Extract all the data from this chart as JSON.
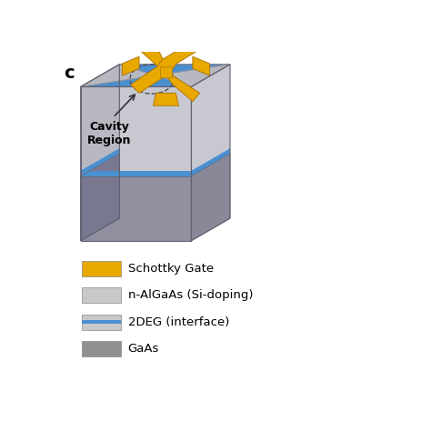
{
  "panel_label": "c",
  "panel_label_fontsize": 14,
  "panel_label_fontweight": "bold",
  "background_color": "#ffffff",
  "gold_color": "#E8A800",
  "gold_dark": "#B07800",
  "blue_2deg": "#4A8FD0",
  "grey_algaas_top": "#D2D2D8",
  "grey_algaas_side_left": "#B8B8C2",
  "grey_algaas_side_right": "#C8C8D0",
  "grey_gaas_front": "#9090A0",
  "grey_gaas_side_left": "#787890",
  "grey_gaas_side_right": "#888898",
  "grey_gaas_bottom": "#808090",
  "legend_items": [
    {
      "label": "Schottky Gate",
      "color": "#E8A800",
      "type": "solid"
    },
    {
      "label": "n-AlGaAs (Si-doping)",
      "color": "#C8C8C8",
      "type": "solid"
    },
    {
      "label": "2DEG (interface)",
      "color": "#4A8FD0",
      "type": "stripe"
    },
    {
      "label": "GaAs",
      "color": "#909090",
      "type": "solid"
    }
  ],
  "cavity_label": "Cavity\nRegion",
  "cavity_label_fontsize": 9,
  "cavity_label_fontweight": "bold"
}
